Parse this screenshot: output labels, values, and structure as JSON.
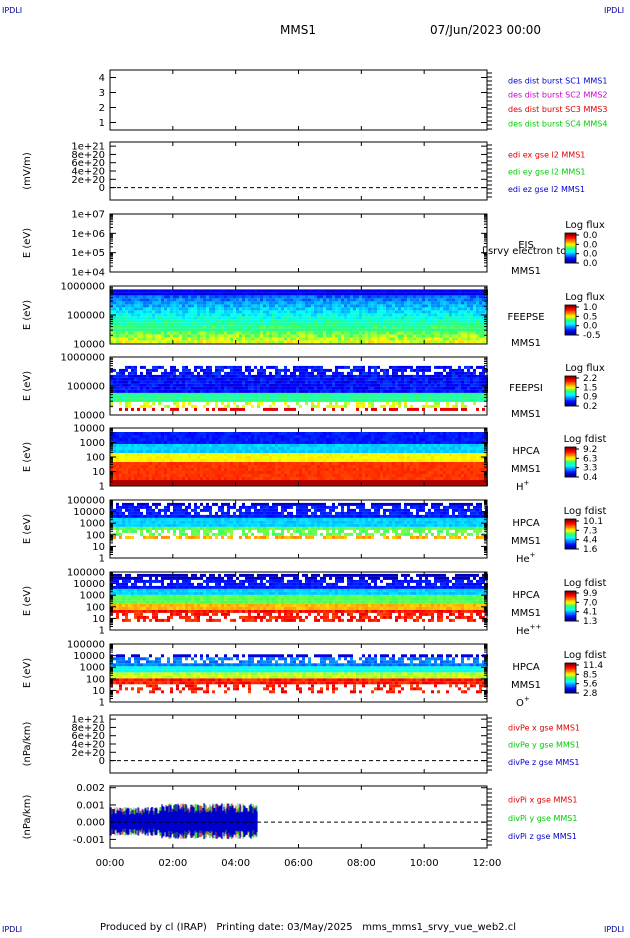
{
  "corner_label": "IPDLI",
  "header": {
    "spacecraft": "MMS1",
    "datetime": "07/Jun/2023 00:00"
  },
  "footer": "Produced by cl (IRAP)   Printing date: 03/May/2025   mms_mms1_srvy_vue_web2.cl",
  "colors": {
    "red": "#dd0000",
    "green": "#00cc00",
    "blue": "#0000cc",
    "magenta": "#cc00cc",
    "dark_blue": "#000099"
  },
  "chart_data": {
    "type": "spectrogram-stack",
    "time_axis": {
      "ticks": [
        "00:00",
        "02:00",
        "04:00",
        "06:00",
        "08:00",
        "10:00",
        "12:00"
      ],
      "range_hours": [
        0,
        12
      ]
    },
    "panels": [
      {
        "id": "sc-positions",
        "type": "line",
        "ylabel": "",
        "ylim": [
          0.5,
          4.5
        ],
        "ticks": [
          {
            "label": "4",
            "v": 4
          },
          {
            "label": "3",
            "v": 3
          },
          {
            "label": "2",
            "v": 2
          },
          {
            "label": "1",
            "v": 1
          }
        ],
        "legend": [
          {
            "text": "des dist burst SC1 MMS1",
            "color": "#0000cc"
          },
          {
            "text": "des dist burst SC2 MMS2",
            "color": "#cc00cc"
          },
          {
            "text": "des dist burst SC3 MMS3",
            "color": "#dd0000"
          },
          {
            "text": "des dist burst SC4 MMS4",
            "color": "#00cc00"
          }
        ]
      },
      {
        "id": "edi-e",
        "type": "line",
        "ylabel": "(mV/m)",
        "ylim": [
          -3e+20,
          1.1e+21
        ],
        "zero_line": true,
        "ticks": [
          {
            "label": "1e+21",
            "v": 1e+21
          },
          {
            "label": "8e+20",
            "v": 8e+20
          },
          {
            "label": "6e+20",
            "v": 6e+20
          },
          {
            "label": "4e+20",
            "v": 4e+20
          },
          {
            "label": "2e+20",
            "v": 2e+20
          },
          {
            "label": "0",
            "v": 0
          }
        ],
        "legend": [
          {
            "text": "edi ex gse l2 MMS1",
            "color": "#dd0000"
          },
          {
            "text": "edi ey gse l2 MMS1",
            "color": "#00cc00"
          },
          {
            "text": "edi ez gse l2 MMS1",
            "color": "#0000cc"
          }
        ]
      },
      {
        "id": "eis",
        "type": "spectrogram",
        "ylabel": "E (eV)",
        "log": true,
        "ylim": [
          10000.0,
          10000000.0
        ],
        "ticks": [
          {
            "label": "1e+07",
            "v": 10000000.0
          },
          {
            "label": "1e+06",
            "v": 1000000.0
          },
          {
            "label": "1e+05",
            "v": 100000.0
          },
          {
            "label": "1e+04",
            "v": 10000.0
          }
        ],
        "labels": [
          "EIS",
          "MMS1"
        ],
        "overlay_text": "l srvy electron tof",
        "colorbar": {
          "title": "Log flux",
          "ticks": [
            "0.0",
            "0.0",
            "0.0",
            "0.0"
          ]
        },
        "data_extent_hours": [
          0,
          0
        ]
      },
      {
        "id": "feepse",
        "type": "spectrogram",
        "ylabel": "E (eV)",
        "log": true,
        "ylim": [
          10000.0,
          1000000.0
        ],
        "ticks": [
          {
            "label": "1000000",
            "v": 1000000.0
          },
          {
            "label": "100000",
            "v": 100000.0
          },
          {
            "label": "10000",
            "v": 10000.0
          }
        ],
        "labels": [
          "FEEPSE",
          "MMS1"
        ],
        "colorbar": {
          "title": "Log flux",
          "ticks": [
            "1.0",
            "0.5",
            "0.0",
            "-0.5"
          ]
        },
        "data_extent_hours": [
          0,
          12
        ]
      },
      {
        "id": "feepsi",
        "type": "spectrogram",
        "ylabel": "E (eV)",
        "log": true,
        "ylim": [
          10000.0,
          1000000.0
        ],
        "ticks": [
          {
            "label": "1000000",
            "v": 1000000.0
          },
          {
            "label": "100000",
            "v": 100000.0
          },
          {
            "label": "10000",
            "v": 10000.0
          }
        ],
        "labels": [
          "FEEPSI",
          "MMS1"
        ],
        "colorbar": {
          "title": "Log flux",
          "ticks": [
            "2.2",
            "1.5",
            "0.9",
            "0.2"
          ]
        },
        "data_extent_hours": [
          0,
          12
        ]
      },
      {
        "id": "hpca-h",
        "type": "spectrogram",
        "ylabel": "E (eV)",
        "log": true,
        "ylim": [
          1,
          10000.0
        ],
        "ticks": [
          {
            "label": "10000",
            "v": 10000.0
          },
          {
            "label": "1000",
            "v": 1000.0
          },
          {
            "label": "100",
            "v": 100.0
          },
          {
            "label": "10",
            "v": 10
          },
          {
            "label": "1",
            "v": 1
          }
        ],
        "labels": [
          "HPCA",
          "MMS1"
        ],
        "species": "H",
        "species_sup": "+",
        "colorbar": {
          "title": "Log fdist",
          "ticks": [
            "9.2",
            "6.3",
            "3.3",
            "0.4"
          ]
        },
        "data_extent_hours": [
          0,
          12
        ]
      },
      {
        "id": "hpca-he",
        "type": "spectrogram",
        "ylabel": "E (eV)",
        "log": true,
        "ylim": [
          1,
          100000.0
        ],
        "ticks": [
          {
            "label": "100000",
            "v": 100000.0
          },
          {
            "label": "10000",
            "v": 10000.0
          },
          {
            "label": "1000",
            "v": 1000.0
          },
          {
            "label": "100",
            "v": 100.0
          },
          {
            "label": "10",
            "v": 10
          },
          {
            "label": "1",
            "v": 1
          }
        ],
        "labels": [
          "HPCA",
          "MMS1"
        ],
        "species": "He",
        "species_sup": "+",
        "colorbar": {
          "title": "Log fdist",
          "ticks": [
            "10.1",
            "7.3",
            "4.4",
            "1.6"
          ]
        },
        "data_extent_hours": [
          0,
          12
        ]
      },
      {
        "id": "hpca-hepp",
        "type": "spectrogram",
        "ylabel": "E (eV)",
        "log": true,
        "ylim": [
          1,
          100000.0
        ],
        "ticks": [
          {
            "label": "100000",
            "v": 100000.0
          },
          {
            "label": "10000",
            "v": 10000.0
          },
          {
            "label": "1000",
            "v": 1000.0
          },
          {
            "label": "100",
            "v": 100.0
          },
          {
            "label": "10",
            "v": 10
          },
          {
            "label": "1",
            "v": 1
          }
        ],
        "labels": [
          "HPCA",
          "MMS1"
        ],
        "species": "He",
        "species_sup": "++",
        "colorbar": {
          "title": "Log fdist",
          "ticks": [
            "9.9",
            "7.0",
            "4.1",
            "1.3"
          ]
        },
        "data_extent_hours": [
          0,
          12
        ]
      },
      {
        "id": "hpca-o",
        "type": "spectrogram",
        "ylabel": "E (eV)",
        "log": true,
        "ylim": [
          1,
          100000.0
        ],
        "ticks": [
          {
            "label": "100000",
            "v": 100000.0
          },
          {
            "label": "10000",
            "v": 10000.0
          },
          {
            "label": "1000",
            "v": 1000.0
          },
          {
            "label": "100",
            "v": 100.0
          },
          {
            "label": "10",
            "v": 10
          },
          {
            "label": "1",
            "v": 1
          }
        ],
        "labels": [
          "HPCA",
          "MMS1"
        ],
        "species": "O",
        "species_sup": "+",
        "colorbar": {
          "title": "Log fdist",
          "ticks": [
            "11.4",
            "8.5",
            "5.6",
            "2.8"
          ]
        },
        "data_extent_hours": [
          0,
          12
        ]
      },
      {
        "id": "divpe",
        "type": "line",
        "ylabel": "(nPa/km)",
        "ylim": [
          -3e+20,
          1.1e+21
        ],
        "zero_line": true,
        "ticks": [
          {
            "label": "1e+21",
            "v": 1e+21
          },
          {
            "label": "8e+20",
            "v": 8e+20
          },
          {
            "label": "6e+20",
            "v": 6e+20
          },
          {
            "label": "4e+20",
            "v": 4e+20
          },
          {
            "label": "2e+20",
            "v": 2e+20
          },
          {
            "label": "0",
            "v": 0
          }
        ],
        "legend": [
          {
            "text": "divPe x gse MMS1",
            "color": "#dd0000"
          },
          {
            "text": "divPe y gse MMS1",
            "color": "#00cc00"
          },
          {
            "text": "divPe z gse MMS1",
            "color": "#0000cc"
          }
        ]
      },
      {
        "id": "divpi",
        "type": "noise-line",
        "ylabel": "(nPa/km)",
        "ylim": [
          -0.0015,
          0.0021
        ],
        "zero_line": true,
        "ticks": [
          {
            "label": "0.002",
            "v": 0.002
          },
          {
            "label": "0.001",
            "v": 0.001
          },
          {
            "label": "0.000",
            "v": 0
          },
          {
            "label": "-0.001",
            "v": -0.001
          }
        ],
        "legend": [
          {
            "text": "divPi x gse MMS1",
            "color": "#dd0000"
          },
          {
            "text": "divPi y gse MMS1",
            "color": "#00cc00"
          },
          {
            "text": "divPi z gse MMS1",
            "color": "#0000cc"
          }
        ],
        "data_extent_hours": [
          0,
          4.7
        ]
      }
    ]
  }
}
